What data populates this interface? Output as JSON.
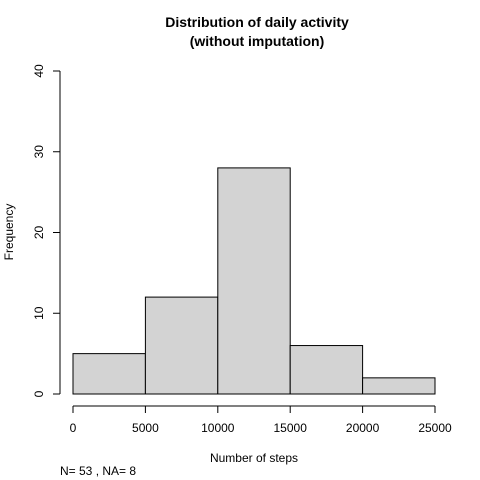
{
  "chart_data": {
    "type": "bar",
    "title_line1": "Distribution of daily activity",
    "title_line2": "(without imputation)",
    "xlabel": "Number of steps",
    "ylabel": "Frequency",
    "bins": [
      {
        "from": 0,
        "to": 5000,
        "count": 5
      },
      {
        "from": 5000,
        "to": 10000,
        "count": 12
      },
      {
        "from": 10000,
        "to": 15000,
        "count": 28
      },
      {
        "from": 15000,
        "to": 20000,
        "count": 6
      },
      {
        "from": 20000,
        "to": 25000,
        "count": 2
      }
    ],
    "xlim": [
      0,
      25000
    ],
    "ylim": [
      0,
      40
    ],
    "xticks": [
      "0",
      "5000",
      "10000",
      "15000",
      "20000",
      "25000"
    ],
    "yticks": [
      "0",
      "10",
      "20",
      "30",
      "40"
    ],
    "bar_color": "#d3d3d3",
    "grid": false,
    "legend": "none",
    "note": "N= 53 , NA= 8"
  }
}
